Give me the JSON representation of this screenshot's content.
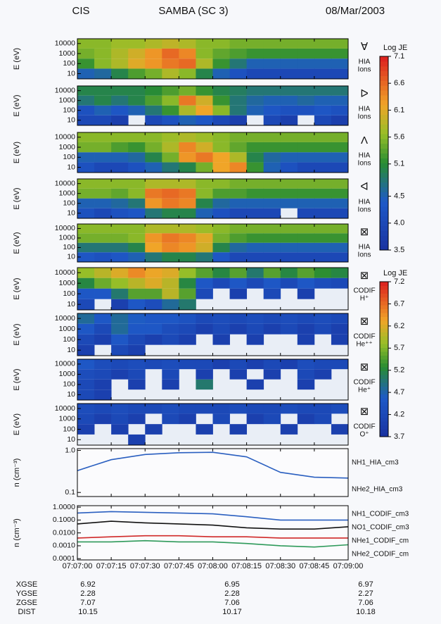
{
  "header": {
    "left": "CIS",
    "center": "SAMBA (SC 3)",
    "right": "08/Mar/2003"
  },
  "time_axis": {
    "labels": [
      "07:07:00",
      "07:07:15",
      "07:07:30",
      "07:07:45",
      "07:08:00",
      "07:08:15",
      "07:08:30",
      "07:08:45",
      "07:09:00"
    ]
  },
  "colorbars": [
    {
      "title": "Log JE",
      "ticks": [
        7.1,
        6.6,
        6.1,
        5.6,
        5.1,
        4.5,
        {
          "value": 4,
          "label": "4.0"
        },
        3.5
      ]
    },
    {
      "title": "Log JE",
      "ticks": [
        7.2,
        6.7,
        6.2,
        5.7,
        5.2,
        4.7,
        4.2,
        3.7
      ]
    }
  ],
  "chart_data": [
    {
      "type": "heatmap",
      "ylabel": "E (eV)",
      "log_y": true,
      "ylim": [
        3,
        30000
      ],
      "yticks": [
        10000,
        1000,
        100,
        10
      ],
      "energies": [
        10,
        100,
        1000,
        10000
      ],
      "colorbar": 0,
      "labels": [
        "∀",
        "HIA",
        "Ions"
      ],
      "values": [
        [
          4.5,
          4.6,
          5.0,
          5.3,
          5.5,
          5.8,
          5.6,
          5.0,
          4.5,
          4.2,
          4.0,
          4.0,
          4.0,
          4.0,
          4.0,
          4.0
        ],
        [
          5.2,
          5.6,
          5.8,
          6.1,
          6.3,
          6.5,
          6.6,
          5.8,
          5.2,
          4.8,
          4.5,
          4.5,
          4.5,
          4.5,
          4.5,
          4.5
        ],
        [
          5.5,
          5.6,
          5.8,
          6.0,
          6.3,
          6.6,
          6.4,
          5.6,
          5.4,
          5.3,
          5.2,
          5.2,
          5.2,
          5.2,
          5.2,
          5.2
        ],
        [
          5.6,
          5.6,
          5.7,
          5.7,
          5.8,
          5.9,
          5.8,
          5.6,
          5.6,
          5.5,
          5.5,
          5.5,
          5.5,
          5.5,
          5.5,
          5.5
        ]
      ]
    },
    {
      "type": "heatmap",
      "ylabel": "E (eV)",
      "log_y": true,
      "ylim": [
        3,
        30000
      ],
      "yticks": [
        10000,
        1000,
        100,
        10
      ],
      "energies": [
        10,
        100,
        1000,
        10000
      ],
      "colorbar": 0,
      "labels": [
        "ᐅ",
        "HIA",
        "Ions"
      ],
      "values": [
        [
          4.0,
          4.0,
          3.8,
          null,
          4.0,
          4.2,
          4.5,
          4.3,
          4.0,
          3.8,
          null,
          4.0,
          3.8,
          null,
          4.0,
          3.8
        ],
        [
          4.2,
          4.5,
          4.3,
          4.5,
          4.8,
          5.2,
          5.8,
          6.2,
          5.6,
          4.8,
          4.5,
          4.3,
          4.2,
          4.2,
          4.3,
          4.2
        ],
        [
          4.8,
          5.0,
          4.8,
          5.0,
          5.3,
          5.6,
          6.5,
          6.0,
          5.2,
          4.8,
          4.6,
          4.5,
          4.5,
          4.6,
          4.5,
          4.5
        ],
        [
          5.0,
          5.0,
          5.0,
          5.0,
          5.1,
          5.3,
          5.5,
          5.2,
          5.0,
          4.9,
          4.8,
          4.8,
          4.8,
          4.8,
          4.8,
          4.8
        ]
      ]
    },
    {
      "type": "heatmap",
      "ylabel": "E (eV)",
      "log_y": true,
      "ylim": [
        3,
        30000
      ],
      "yticks": [
        10000,
        1000,
        100,
        10
      ],
      "energies": [
        10,
        100,
        1000,
        10000
      ],
      "colorbar": 0,
      "labels": [
        "Λ",
        "HIA",
        "Ions"
      ],
      "values": [
        [
          4.2,
          4.0,
          4.0,
          4.2,
          4.5,
          4.8,
          5.0,
          5.5,
          6.2,
          6.4,
          5.2,
          4.5,
          4.2,
          4.0,
          4.0,
          4.0
        ],
        [
          4.5,
          4.5,
          4.5,
          4.6,
          5.0,
          5.5,
          6.3,
          6.5,
          6.2,
          5.8,
          5.0,
          4.6,
          4.5,
          4.5,
          4.5,
          4.5
        ],
        [
          5.5,
          5.5,
          5.3,
          5.2,
          5.5,
          5.8,
          6.4,
          6.0,
          5.6,
          5.4,
          5.2,
          5.2,
          5.2,
          5.2,
          5.2,
          5.2
        ],
        [
          5.6,
          5.6,
          5.6,
          5.6,
          5.6,
          5.7,
          5.8,
          5.7,
          5.6,
          5.5,
          5.5,
          5.5,
          5.5,
          5.5,
          5.5,
          5.5
        ]
      ]
    },
    {
      "type": "heatmap",
      "ylabel": "E (eV)",
      "log_y": true,
      "ylim": [
        3,
        30000
      ],
      "yticks": [
        10000,
        1000,
        100,
        10
      ],
      "energies": [
        10,
        100,
        1000,
        10000
      ],
      "colorbar": 0,
      "labels": [
        "ᐊ",
        "HIA",
        "Ions"
      ],
      "values": [
        [
          4.2,
          4.0,
          4.2,
          4.3,
          4.8,
          5.0,
          5.0,
          4.5,
          4.2,
          4.0,
          4.0,
          4.0,
          null,
          4.0,
          4.0,
          4.0
        ],
        [
          4.5,
          4.5,
          4.6,
          4.8,
          6.3,
          6.5,
          6.4,
          5.0,
          4.6,
          4.5,
          4.5,
          4.5,
          4.5,
          4.5,
          4.5,
          4.5
        ],
        [
          5.5,
          5.5,
          5.4,
          5.6,
          6.5,
          6.6,
          6.5,
          5.6,
          5.3,
          5.3,
          5.2,
          5.2,
          5.2,
          5.2,
          5.2,
          5.2
        ],
        [
          5.6,
          5.6,
          5.6,
          5.6,
          5.8,
          5.8,
          5.8,
          5.6,
          5.6,
          5.5,
          5.5,
          5.5,
          5.5,
          5.5,
          5.5,
          5.5
        ]
      ]
    },
    {
      "type": "heatmap",
      "ylabel": "E (eV)",
      "log_y": true,
      "ylim": [
        3,
        30000
      ],
      "yticks": [
        10000,
        1000,
        100,
        10
      ],
      "energies": [
        10,
        100,
        1000,
        10000
      ],
      "colorbar": 0,
      "labels": [
        "⊠",
        "HIA",
        "Ions"
      ],
      "values": [
        [
          4.3,
          4.2,
          4.3,
          4.5,
          4.8,
          5.0,
          5.0,
          4.8,
          4.3,
          4.0,
          4.0,
          4.0,
          4.0,
          4.0,
          4.0,
          4.0
        ],
        [
          4.8,
          4.8,
          4.8,
          5.0,
          6.2,
          6.4,
          6.3,
          6.0,
          5.0,
          4.6,
          4.5,
          4.5,
          4.5,
          4.5,
          4.5,
          4.5
        ],
        [
          5.5,
          5.5,
          5.5,
          5.6,
          6.3,
          6.5,
          6.4,
          6.1,
          5.5,
          5.3,
          5.2,
          5.2,
          5.2,
          5.2,
          5.2,
          5.2
        ],
        [
          5.6,
          5.6,
          5.6,
          5.6,
          5.8,
          5.8,
          5.8,
          5.7,
          5.6,
          5.5,
          5.5,
          5.5,
          5.5,
          5.5,
          5.5,
          5.5
        ]
      ]
    },
    {
      "type": "heatmap",
      "ylabel": "E (eV)",
      "log_y": true,
      "ylim": [
        3,
        30000
      ],
      "yticks": [
        10000,
        1000,
        100,
        10
      ],
      "energies": [
        10,
        100,
        1000,
        10000
      ],
      "colorbar": 1,
      "labels": [
        "⊠",
        "CODIF",
        "H⁺"
      ],
      "values": [
        [
          4.2,
          null,
          4.0,
          4.5,
          4.3,
          4.8,
          5.0,
          null,
          null,
          null,
          null,
          null,
          null,
          null,
          null,
          null
        ],
        [
          4.5,
          4.5,
          5.0,
          5.5,
          5.5,
          6.0,
          5.5,
          4.2,
          null,
          4.0,
          null,
          4.2,
          null,
          4.0,
          null,
          null
        ],
        [
          5.2,
          5.6,
          5.8,
          6.0,
          6.2,
          6.0,
          5.2,
          4.5,
          4.2,
          4.5,
          4.2,
          4.5,
          4.2,
          4.5,
          4.3,
          4.2
        ],
        [
          5.8,
          6.0,
          6.2,
          6.5,
          6.3,
          6.2,
          5.8,
          5.5,
          5.2,
          5.5,
          5.0,
          5.5,
          5.2,
          5.5,
          5.3,
          5.2
        ]
      ]
    },
    {
      "type": "heatmap",
      "ylabel": "E (eV)",
      "log_y": true,
      "ylim": [
        3,
        30000
      ],
      "yticks": [
        10000,
        1000,
        100,
        10
      ],
      "energies": [
        10,
        100,
        1000,
        10000
      ],
      "colorbar": 1,
      "labels": [
        "⊠",
        "CODIF",
        "He⁺⁺"
      ],
      "values": [
        [
          4.0,
          null,
          4.2,
          4.0,
          null,
          null,
          null,
          null,
          null,
          null,
          null,
          null,
          null,
          null,
          null,
          null
        ],
        [
          4.2,
          4.0,
          4.5,
          4.2,
          4.0,
          4.2,
          4.0,
          null,
          4.0,
          null,
          4.0,
          null,
          null,
          4.0,
          null,
          4.0
        ],
        [
          4.5,
          4.2,
          4.8,
          4.5,
          4.5,
          4.3,
          4.2,
          4.0,
          4.2,
          4.0,
          4.2,
          4.0,
          4.2,
          4.0,
          4.2,
          4.0
        ],
        [
          4.8,
          4.5,
          4.8,
          4.6,
          4.5,
          4.5,
          4.4,
          4.2,
          4.3,
          4.2,
          4.3,
          4.2,
          4.3,
          4.2,
          4.3,
          4.2
        ]
      ]
    },
    {
      "type": "heatmap",
      "ylabel": "E (eV)",
      "log_y": true,
      "ylim": [
        3,
        30000
      ],
      "yticks": [
        10000,
        1000,
        100,
        10
      ],
      "energies": [
        10,
        100,
        1000,
        10000
      ],
      "colorbar": 1,
      "labels": [
        "⊠",
        "CODIF",
        "He⁺"
      ],
      "values": [
        [
          4.2,
          4.0,
          null,
          null,
          null,
          null,
          null,
          null,
          null,
          null,
          null,
          null,
          null,
          null,
          null,
          null
        ],
        [
          4.2,
          4.0,
          null,
          4.0,
          null,
          4.0,
          null,
          5.0,
          null,
          null,
          4.0,
          null,
          null,
          4.0,
          null,
          null
        ],
        [
          4.3,
          4.2,
          4.0,
          4.2,
          null,
          4.2,
          null,
          4.0,
          null,
          4.0,
          null,
          4.0,
          null,
          4.2,
          4.0,
          null
        ],
        [
          4.5,
          4.3,
          4.2,
          4.3,
          4.2,
          4.3,
          4.2,
          4.2,
          4.0,
          4.2,
          4.0,
          4.2,
          4.0,
          4.3,
          4.2,
          4.2
        ]
      ]
    },
    {
      "type": "heatmap",
      "ylabel": "E (eV)",
      "log_y": true,
      "ylim": [
        3,
        30000
      ],
      "yticks": [
        10000,
        1000,
        100,
        10
      ],
      "energies": [
        10,
        100,
        1000,
        10000
      ],
      "colorbar": 1,
      "labels": [
        "⊠",
        "CODIF",
        "O⁺"
      ],
      "values": [
        [
          null,
          null,
          null,
          4.0,
          null,
          null,
          null,
          null,
          null,
          null,
          null,
          null,
          null,
          null,
          null,
          null
        ],
        [
          4.0,
          null,
          4.0,
          null,
          4.0,
          null,
          null,
          4.0,
          null,
          4.0,
          null,
          null,
          4.0,
          null,
          null,
          4.0
        ],
        [
          4.2,
          4.0,
          4.2,
          4.0,
          null,
          4.2,
          4.0,
          null,
          4.2,
          null,
          4.0,
          4.2,
          null,
          4.0,
          4.2,
          null
        ],
        [
          4.3,
          4.2,
          4.3,
          4.2,
          4.2,
          4.3,
          4.2,
          4.2,
          4.2,
          4.3,
          4.2,
          4.2,
          4.3,
          4.2,
          4.2,
          4.3
        ]
      ]
    },
    {
      "type": "line",
      "ylabel": "n (cm⁻³)",
      "log_y": true,
      "ylim": [
        0.08,
        1.1
      ],
      "yticks": [
        {
          "value": 1,
          "label": "1.0"
        },
        0.1
      ],
      "series": [
        {
          "name": "NH1_HIA_cm3",
          "color": "#2a5fc0",
          "values": [
            0.33,
            0.6,
            0.8,
            0.88,
            0.9,
            0.7,
            0.3,
            0.23,
            0.22
          ]
        },
        {
          "name": "NHe2_HIA_cm3",
          "color": "#d02828",
          "values": [
            null,
            null,
            null,
            null,
            null,
            null,
            null,
            null,
            null
          ]
        }
      ]
    },
    {
      "type": "line",
      "ylabel": "n (cm⁻³)",
      "log_y": true,
      "ylim": [
        8e-05,
        1.3
      ],
      "yticks": [
        {
          "value": 1,
          "label": "1.0000"
        },
        {
          "value": 0.1,
          "label": "0.1000"
        },
        {
          "value": 0.01,
          "label": "0.0100"
        },
        {
          "value": 0.001,
          "label": "0.0010"
        },
        0.0001
      ],
      "series": [
        {
          "name": "NH1_CODIF_cm3",
          "color": "#2a5fc0",
          "values": [
            0.35,
            0.45,
            0.4,
            0.35,
            0.3,
            0.18,
            0.1,
            0.1,
            0.1
          ]
        },
        {
          "name": "NO1_CODIF_cm3",
          "color": "#d02828",
          "values": [
            0.004,
            0.005,
            0.006,
            0.006,
            0.005,
            0.005,
            0.004,
            0.004,
            0.004
          ]
        },
        {
          "name": "NHe1_CODIF_cm",
          "color": "#2e9a5a",
          "values": [
            0.002,
            0.002,
            0.0025,
            0.002,
            0.002,
            0.0015,
            0.001,
            0.0008,
            0.0012
          ]
        },
        {
          "name": "NHe2_CODIF_cm",
          "color": "#111111",
          "values": [
            0.05,
            0.08,
            0.06,
            0.05,
            0.04,
            0.025,
            0.02,
            0.02,
            0.03
          ]
        }
      ]
    }
  ],
  "ephemeris": {
    "rows": [
      [
        "XGSE",
        6.92,
        6.95,
        6.97
      ],
      [
        "YGSE",
        2.28,
        2.28,
        2.27
      ],
      [
        "ZGSE",
        7.07,
        7.06,
        7.06
      ],
      [
        "DIST",
        10.15,
        10.17,
        10.18
      ]
    ]
  }
}
